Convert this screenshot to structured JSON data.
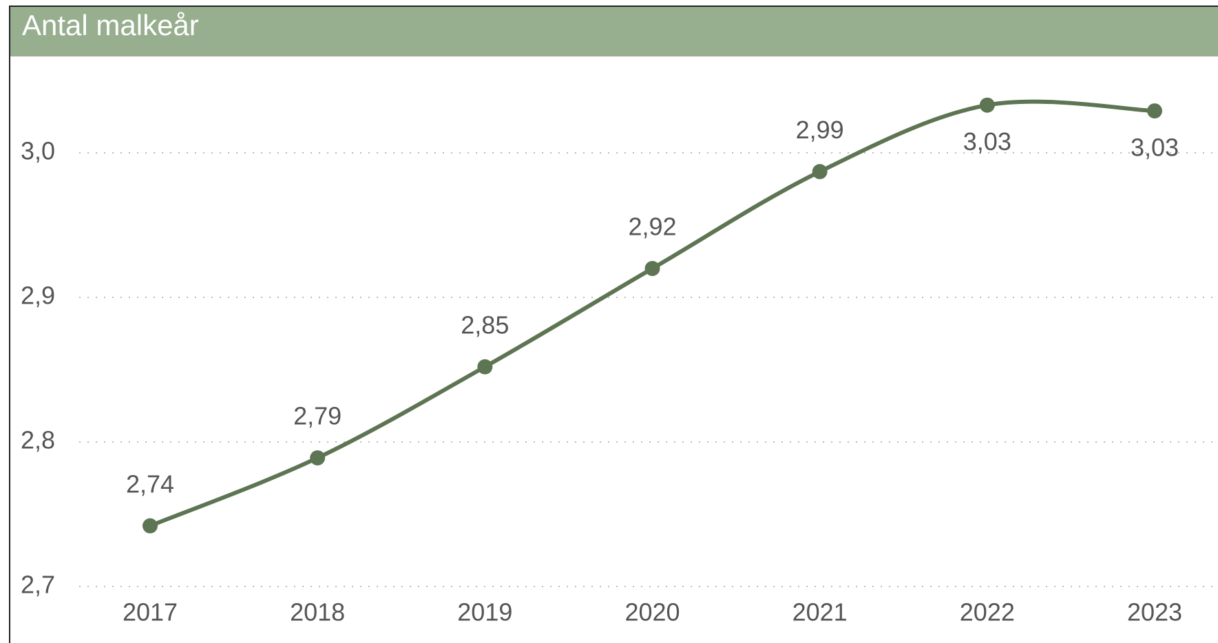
{
  "chart_data": {
    "type": "line",
    "title": "Antal malkeår",
    "categories": [
      "2017",
      "2018",
      "2019",
      "2020",
      "2021",
      "2022",
      "2023"
    ],
    "series": [
      {
        "name": "Antal malkeår",
        "color": "#5e7553",
        "values": [
          2.742,
          2.789,
          2.852,
          2.92,
          2.987,
          3.033,
          3.029
        ],
        "value_labels": [
          "2,74",
          "2,79",
          "2,85",
          "2,92",
          "2,99",
          "3,03",
          "3,03"
        ]
      }
    ],
    "ylim": [
      2.66,
      3.064
    ],
    "yticks": [
      {
        "value": 2.7,
        "label": "2,7"
      },
      {
        "value": 2.8,
        "label": "2,8"
      },
      {
        "value": 2.9,
        "label": "2,9"
      },
      {
        "value": 3.0,
        "label": "3,0"
      }
    ],
    "grid": true,
    "header_color": "#97ae8f"
  }
}
